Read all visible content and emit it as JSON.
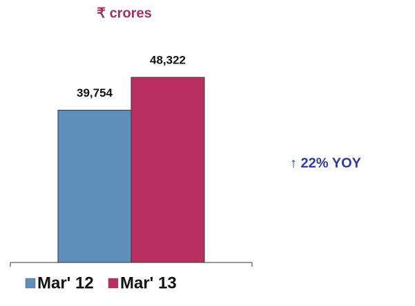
{
  "chart_data": {
    "type": "bar",
    "title": "₹ crores",
    "annotation": "↑ 22% YOY",
    "series": [
      {
        "name": "Mar' 12",
        "color": "#5e8fbb",
        "values": [
          39754
        ],
        "value_labels": [
          "39,754"
        ]
      },
      {
        "name": "Mar' 13",
        "color": "#b92f60",
        "values": [
          48322
        ],
        "value_labels": [
          "48,322"
        ]
      }
    ]
  }
}
